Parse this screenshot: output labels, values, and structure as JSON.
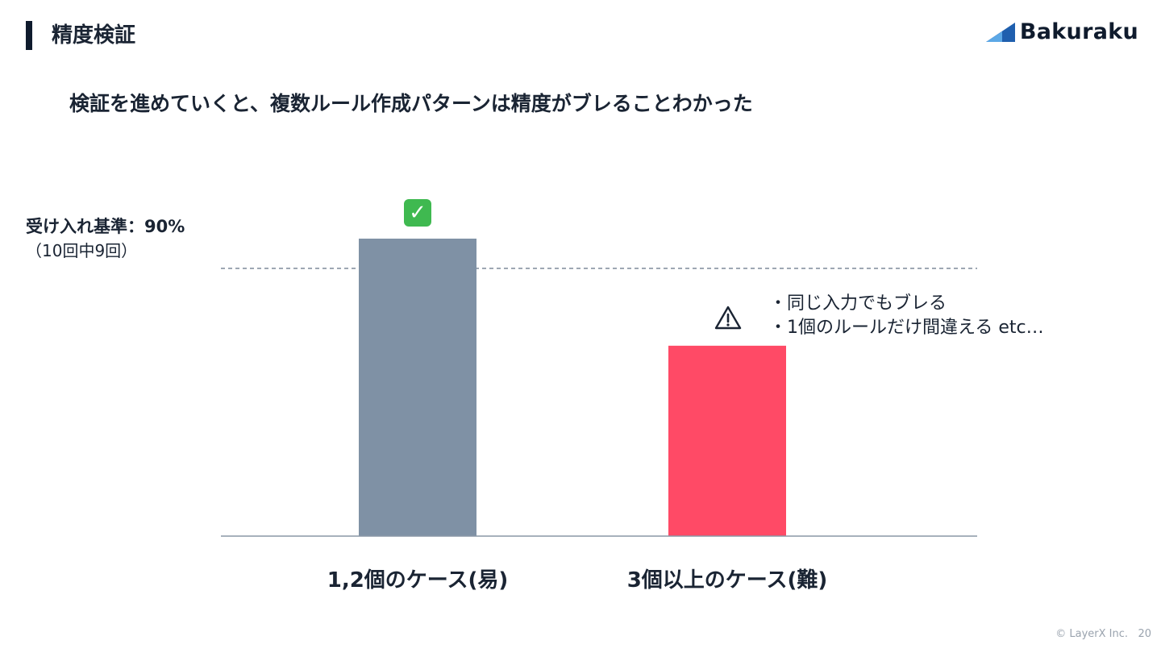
{
  "header": {
    "title": "精度検証",
    "logo_text": "Bakuraku"
  },
  "subtitle": "検証を進めていくと、複数ルール作成パターンは精度がブレることわかった",
  "threshold": {
    "label": "受け入れ基準：90%",
    "sub": "（10回中9回）"
  },
  "notes": [
    "同じ入力でもブレる",
    "1個のルールだけ間違える etc…"
  ],
  "icons": {
    "pass": "check-mark-icon",
    "fail": "warning-icon"
  },
  "colors": {
    "bar_easy": "#7f91a5",
    "bar_hard": "#ff4a66",
    "accent": "#1f5fae"
  },
  "footer": {
    "copyright": "© LayerX Inc.",
    "page": "20"
  },
  "chart_data": {
    "type": "bar",
    "categories": [
      "1,2個のケース(易)",
      "3個以上のケース(難)"
    ],
    "values": [
      100,
      64
    ],
    "threshold": 90,
    "ylim": [
      0,
      100
    ],
    "xlabel": "",
    "ylabel": "",
    "grid": false,
    "colors": [
      "#7f91a5",
      "#ff4a66"
    ]
  }
}
